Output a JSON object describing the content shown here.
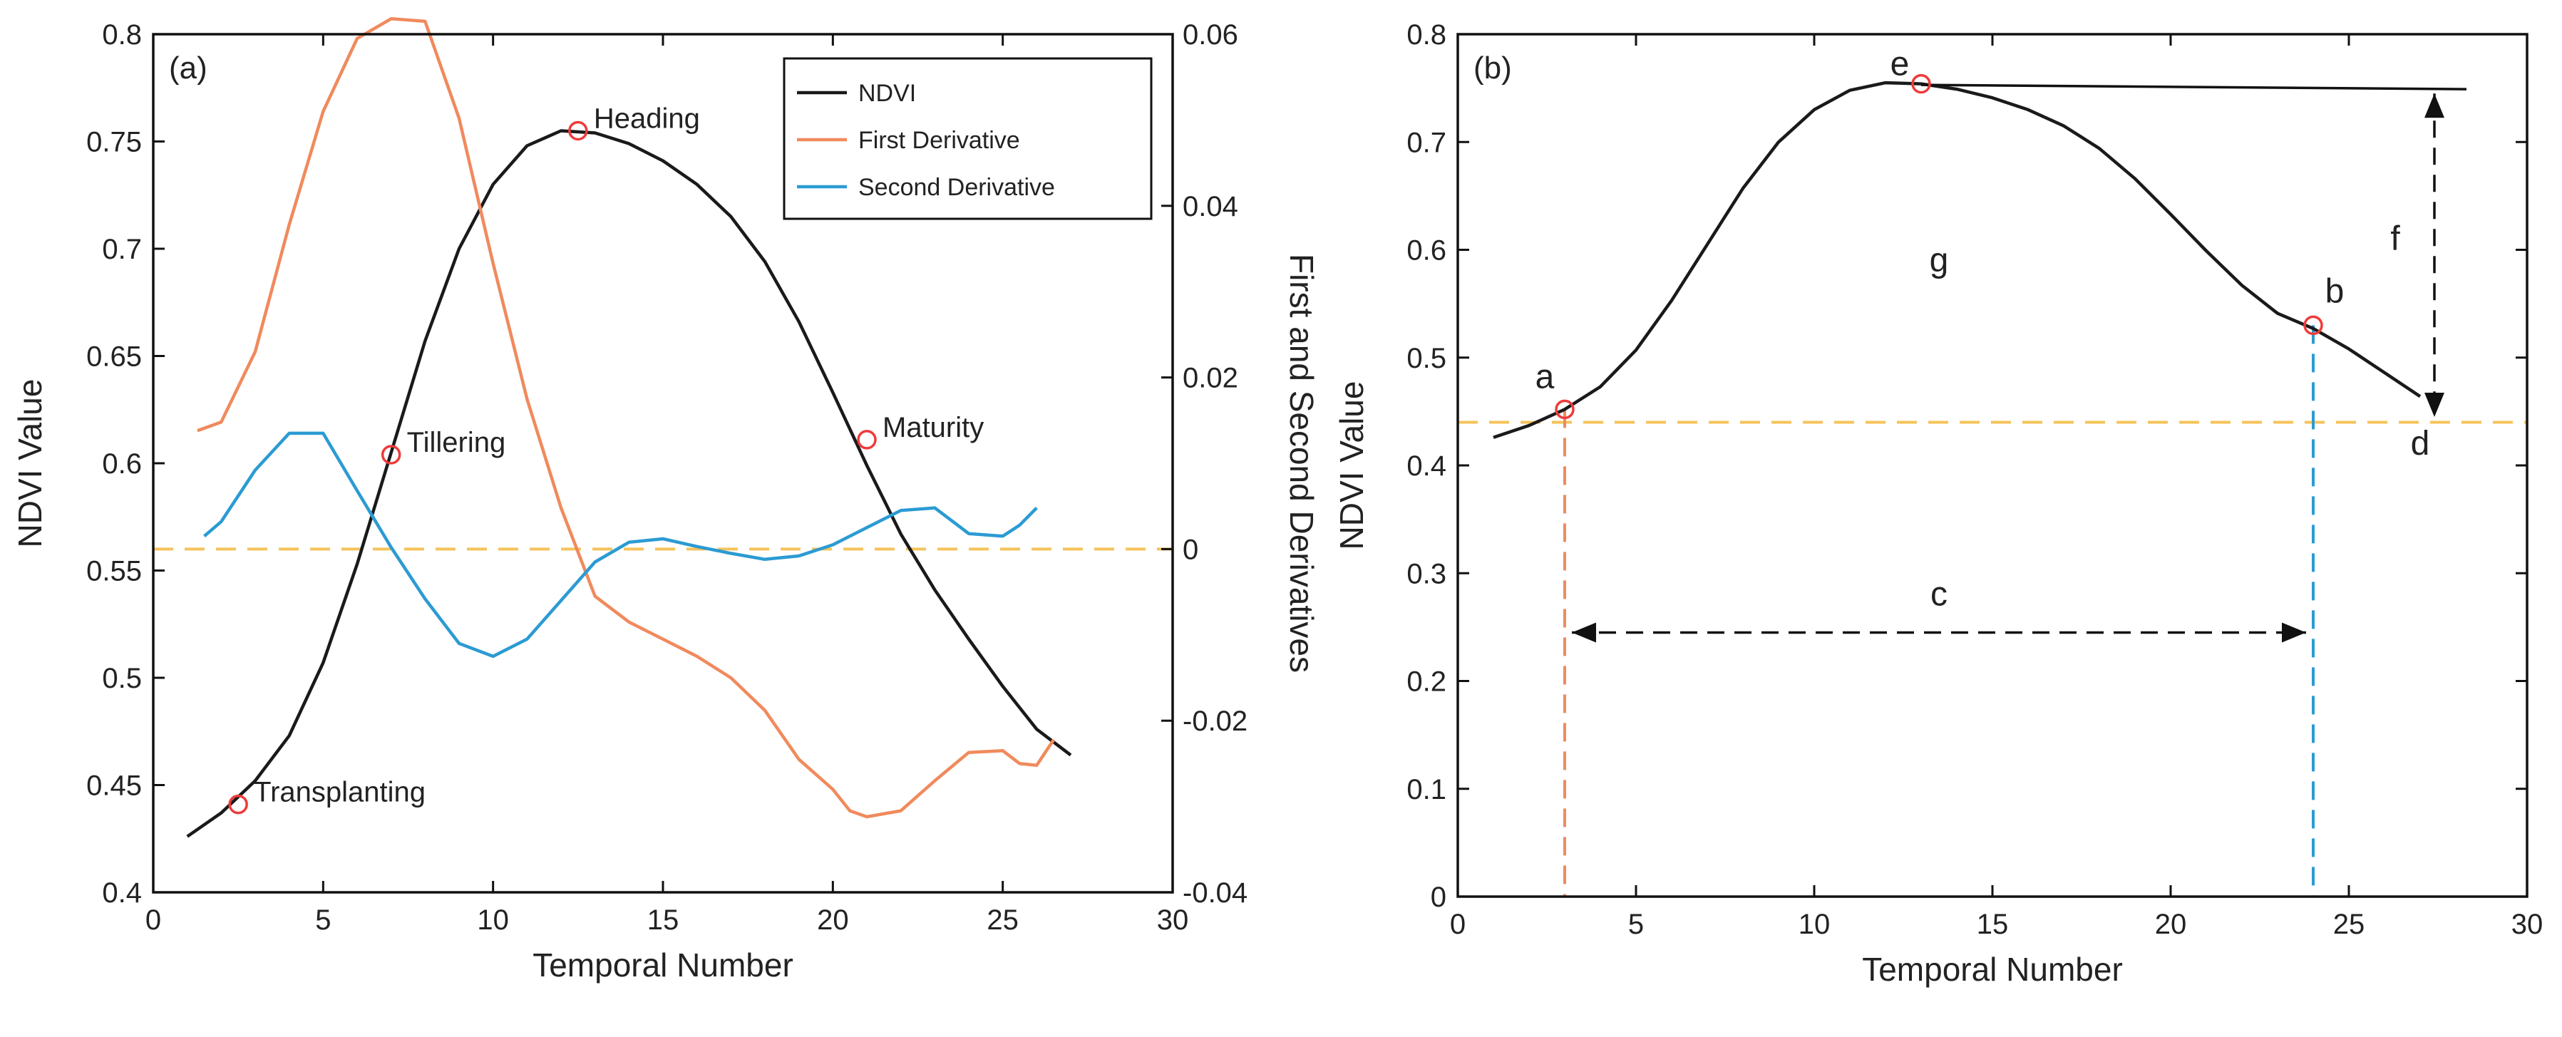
{
  "chart_data": [
    {
      "type": "line",
      "panel_label": "(a)",
      "xlabel": "Temporal Number",
      "ylabel": "NDVI Value",
      "y2label": "First and Second Derivatives",
      "xlim": [
        0,
        30
      ],
      "ylim": [
        0.4,
        0.8
      ],
      "y2lim": [
        -0.04,
        0.06
      ],
      "xticks": [
        "0",
        "5",
        "10",
        "15",
        "20",
        "25",
        "30"
      ],
      "yticks": [
        "0.4",
        "0.45",
        "0.5",
        "0.55",
        "0.6",
        "0.65",
        "0.7",
        "0.75",
        "0.8"
      ],
      "y2ticks": [
        "-0.04",
        "-0.02",
        "0",
        "0.02",
        "0.04",
        "0.06"
      ],
      "grid": false,
      "legend_position": "top-right",
      "series": [
        {
          "name": "NDVI",
          "axis": "left",
          "color": "#1a1a1a",
          "x": [
            1,
            2,
            3,
            4,
            5,
            6,
            7,
            8,
            9,
            10,
            11,
            12,
            13,
            14,
            15,
            16,
            17,
            18,
            19,
            20,
            21,
            22,
            23,
            24,
            25,
            26,
            27
          ],
          "y": [
            0.426,
            0.437,
            0.452,
            0.473,
            0.507,
            0.553,
            0.605,
            0.657,
            0.7,
            0.73,
            0.748,
            0.755,
            0.754,
            0.749,
            0.741,
            0.73,
            0.715,
            0.694,
            0.666,
            0.633,
            0.599,
            0.567,
            0.541,
            0.518,
            0.496,
            0.476,
            0.464
          ]
        },
        {
          "name": "First Derivative",
          "axis": "right",
          "color": "#f08a5d",
          "x": [
            1.3,
            2,
            3,
            4,
            5,
            6,
            7,
            8,
            9,
            10,
            11,
            12,
            13,
            14,
            15,
            16,
            17,
            18,
            19,
            20,
            20.5,
            21,
            22,
            23,
            24,
            25,
            25.5,
            26,
            26.5
          ],
          "y": [
            0.0138,
            0.0148,
            0.023,
            0.0378,
            0.051,
            0.0595,
            0.0618,
            0.0615,
            0.0502,
            0.0333,
            0.0175,
            0.0048,
            -0.0055,
            -0.0085,
            -0.0105,
            -0.0125,
            -0.015,
            -0.0188,
            -0.0245,
            -0.028,
            -0.0305,
            -0.0312,
            -0.0305,
            -0.027,
            -0.0237,
            -0.0235,
            -0.025,
            -0.0252,
            -0.0222
          ]
        },
        {
          "name": "Second Derivative",
          "axis": "right",
          "color": "#2b9bd3",
          "x": [
            1.5,
            2,
            3,
            4,
            5,
            6,
            7,
            8,
            9,
            10,
            11,
            12,
            13,
            14,
            15,
            16,
            17,
            18,
            19,
            20,
            21,
            22,
            23,
            24,
            25,
            25.5,
            26
          ],
          "y": [
            0.0015,
            0.0032,
            0.0092,
            0.0135,
            0.0135,
            0.0068,
            0.0002,
            -0.0058,
            -0.011,
            -0.0125,
            -0.0105,
            -0.006,
            -0.0015,
            0.0008,
            0.0012,
            0.0003,
            -0.0005,
            -0.0012,
            -0.0008,
            0.0005,
            0.0025,
            0.0045,
            0.0048,
            0.0018,
            0.0015,
            0.0028,
            0.0048
          ]
        }
      ],
      "reference_lines": [
        {
          "axis": "right",
          "y": 0,
          "style": "dashed",
          "color": "#f5c35a"
        }
      ],
      "annotations": [
        {
          "text": "Transplanting",
          "x": 2.5,
          "y": 0.441
        },
        {
          "text": "Tillering",
          "x": 7,
          "y": 0.604
        },
        {
          "text": "Heading",
          "x": 12.5,
          "y": 0.755
        },
        {
          "text": "Maturity",
          "x": 21,
          "y": 0.611
        }
      ]
    },
    {
      "type": "line",
      "panel_label": "(b)",
      "xlabel": "Temporal Number",
      "ylabel": "NDVI Value",
      "xlim": [
        0,
        30
      ],
      "ylim": [
        0,
        0.8
      ],
      "xticks": [
        "0",
        "5",
        "10",
        "15",
        "20",
        "25",
        "30"
      ],
      "yticks": [
        "0",
        "0.1",
        "0.2",
        "0.3",
        "0.4",
        "0.5",
        "0.6",
        "0.7",
        "0.8"
      ],
      "grid": false,
      "series": [
        {
          "color": "#1a1a1a",
          "x": [
            1,
            2,
            3,
            4,
            5,
            6,
            7,
            8,
            9,
            10,
            11,
            12,
            13,
            14,
            15,
            16,
            17,
            18,
            19,
            20,
            21,
            22,
            23,
            24,
            25,
            26,
            27
          ],
          "y": [
            0.426,
            0.437,
            0.452,
            0.473,
            0.507,
            0.553,
            0.605,
            0.657,
            0.7,
            0.73,
            0.748,
            0.755,
            0.754,
            0.749,
            0.741,
            0.73,
            0.715,
            0.694,
            0.666,
            0.633,
            0.599,
            0.567,
            0.541,
            0.527,
            0.508,
            0.486,
            0.464
          ]
        }
      ],
      "max_line": {
        "x1": 13,
        "x2": 28.3,
        "y": 0.753
      },
      "base_line": {
        "y": 0.44,
        "color": "#f5c35a"
      },
      "vlines": [
        {
          "x": 3,
          "y": 0.452,
          "color": "#f08a5d"
        },
        {
          "x": 24,
          "y": 0.53,
          "color": "#2b9bd3"
        }
      ],
      "points": [
        {
          "label": "a",
          "x": 3,
          "y": 0.452
        },
        {
          "label": "b",
          "x": 24,
          "y": 0.53
        },
        {
          "label": "e",
          "x": 13,
          "y": 0.754
        }
      ],
      "labels": [
        {
          "text": "c",
          "x": 13.5,
          "y": 0.27
        },
        {
          "text": "d",
          "x": 27,
          "y": 0.41
        },
        {
          "text": "f",
          "x": 26.3,
          "y": 0.6
        },
        {
          "text": "g",
          "x": 13.5,
          "y": 0.58
        }
      ],
      "arrows": [
        {
          "from": [
            3.2,
            0.245
          ],
          "to": [
            23.8,
            0.245
          ],
          "double": true
        },
        {
          "from": [
            27.4,
            0.745
          ],
          "to": [
            27.4,
            0.445
          ],
          "double": true
        }
      ]
    }
  ]
}
